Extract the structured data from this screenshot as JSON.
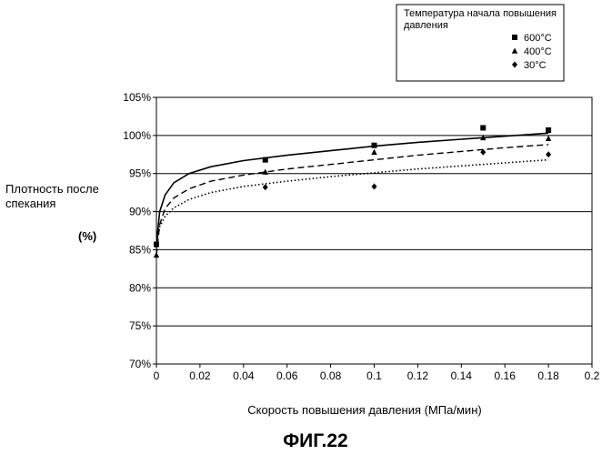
{
  "figure_label": "ФИГ.22",
  "chart_data": {
    "type": "scatter",
    "xlabel": "Скорость повышения давления (МПа/мин)",
    "ylabel_lines": [
      "Плотность после",
      "спекания"
    ],
    "ylabel_unit": "(%)",
    "xlim": [
      0,
      0.2
    ],
    "ylim": [
      70,
      105
    ],
    "x_ticks": [
      0,
      0.02,
      0.04,
      0.06,
      0.08,
      0.1,
      0.12,
      0.14,
      0.16,
      0.18,
      0.2
    ],
    "x_tick_labels": [
      "0",
      "0.02",
      "0.04",
      "0.06",
      "0.08",
      "0.1",
      "0.12",
      "0.14",
      "0.16",
      "0.18",
      "0.2"
    ],
    "y_ticks": [
      70,
      75,
      80,
      85,
      90,
      95,
      100,
      105
    ],
    "y_tick_labels": [
      "70%",
      "75%",
      "80%",
      "85%",
      "90%",
      "95%",
      "100%",
      "105%"
    ],
    "grid": "horizontal",
    "legend": {
      "placement": "top-right",
      "title_lines": [
        "Температура начала повышения",
        "давления"
      ]
    },
    "series": [
      {
        "name": "600°C",
        "marker": "square",
        "line": "solid",
        "x": [
          0,
          0.05,
          0.1,
          0.15,
          0.18
        ],
        "y": [
          85.7,
          96.8,
          98.7,
          101.0,
          100.7
        ],
        "fit": [
          [
            0,
            85.7
          ],
          [
            0.0015,
            90.0
          ],
          [
            0.004,
            92.2
          ],
          [
            0.008,
            93.8
          ],
          [
            0.015,
            95.0
          ],
          [
            0.025,
            95.9
          ],
          [
            0.04,
            96.7
          ],
          [
            0.06,
            97.4
          ],
          [
            0.08,
            98.0
          ],
          [
            0.1,
            98.6
          ],
          [
            0.12,
            99.1
          ],
          [
            0.14,
            99.5
          ],
          [
            0.16,
            99.9
          ],
          [
            0.18,
            100.3
          ]
        ]
      },
      {
        "name": "400°C",
        "marker": "triangle",
        "line": "dashed",
        "x": [
          0,
          0.05,
          0.1,
          0.15,
          0.18
        ],
        "y": [
          84.3,
          95.2,
          97.8,
          99.7,
          99.6
        ],
        "fit": [
          [
            0,
            84.3
          ],
          [
            0.0015,
            88.3
          ],
          [
            0.004,
            90.4
          ],
          [
            0.008,
            91.8
          ],
          [
            0.015,
            93.0
          ],
          [
            0.025,
            94.0
          ],
          [
            0.04,
            94.8
          ],
          [
            0.06,
            95.6
          ],
          [
            0.08,
            96.2
          ],
          [
            0.1,
            96.8
          ],
          [
            0.12,
            97.4
          ],
          [
            0.14,
            97.9
          ],
          [
            0.16,
            98.4
          ],
          [
            0.18,
            98.8
          ]
        ]
      },
      {
        "name": "30°C",
        "marker": "diamond",
        "line": "dotted",
        "x": [
          0,
          0.05,
          0.1,
          0.15,
          0.18
        ],
        "y": [
          85.6,
          93.2,
          93.3,
          97.8,
          97.5
        ],
        "fit": [
          [
            0,
            85.6
          ],
          [
            0.0015,
            88.0
          ],
          [
            0.004,
            89.4
          ],
          [
            0.008,
            90.5
          ],
          [
            0.015,
            91.6
          ],
          [
            0.025,
            92.5
          ],
          [
            0.04,
            93.3
          ],
          [
            0.06,
            94.0
          ],
          [
            0.08,
            94.6
          ],
          [
            0.1,
            95.1
          ],
          [
            0.12,
            95.6
          ],
          [
            0.14,
            96.0
          ],
          [
            0.16,
            96.4
          ],
          [
            0.18,
            96.8
          ]
        ]
      }
    ]
  }
}
